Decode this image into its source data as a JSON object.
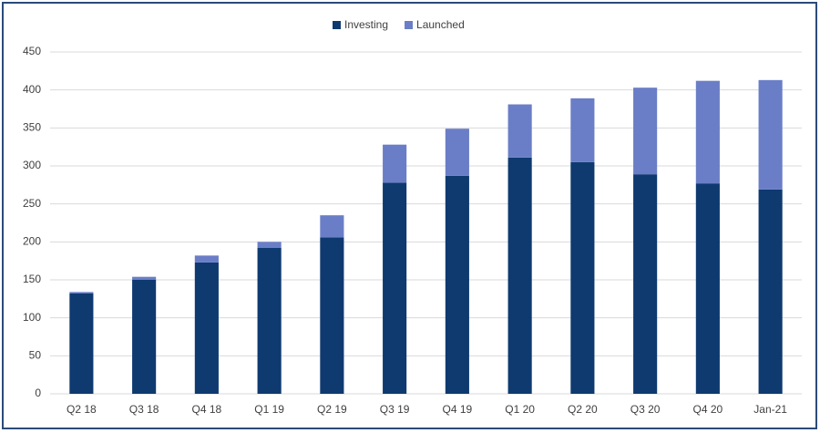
{
  "chart_data": {
    "type": "stacked_bar",
    "categories": [
      "Q2 18",
      "Q3 18",
      "Q4 18",
      "Q1 19",
      "Q2 19",
      "Q3 19",
      "Q4 19",
      "Q1 20",
      "Q2 20",
      "Q3 20",
      "Q4 20",
      "Jan-21"
    ],
    "series": [
      {
        "name": "Investing",
        "color": "#0e3a70",
        "values": [
          132,
          150,
          173,
          192,
          206,
          278,
          287,
          311,
          305,
          289,
          277,
          269
        ]
      },
      {
        "name": "Launched",
        "color": "#6a7ec7",
        "values": [
          2,
          4,
          9,
          8,
          29,
          50,
          62,
          70,
          84,
          114,
          135,
          144
        ]
      }
    ],
    "ylim": [
      0,
      450
    ],
    "yticks": [
      0,
      50,
      100,
      150,
      200,
      250,
      300,
      350,
      400,
      450
    ],
    "grid": true,
    "legend": "top"
  }
}
